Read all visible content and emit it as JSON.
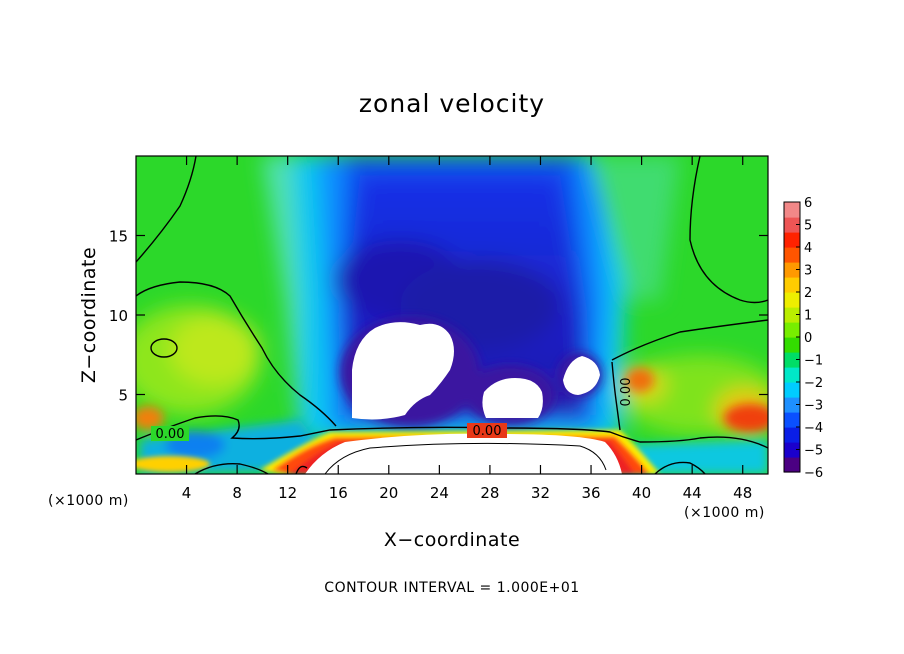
{
  "chart_data": {
    "type": "heatmap",
    "title": "zonal velocity",
    "xlabel": "X−coordinate",
    "ylabel": "Z−coordinate",
    "x_unit_label": "(×1000 m)",
    "x_unit_label_right": "(×1000 m)",
    "xlim": [
      0,
      50
    ],
    "ylim": [
      0,
      20
    ],
    "x_ticks": [
      4,
      8,
      12,
      16,
      20,
      24,
      28,
      32,
      36,
      40,
      44,
      48
    ],
    "y_ticks": [
      5,
      10,
      15
    ],
    "colorbar": {
      "min": -6,
      "max": 6,
      "ticks": [
        "6",
        "5",
        "4",
        "3",
        "2",
        "1",
        "0",
        "−1",
        "−2",
        "−3",
        "−4",
        "−5",
        "−6"
      ],
      "colors": [
        "#4b0082",
        "#1a00cc",
        "#0a1ee6",
        "#0a50ff",
        "#1e90ff",
        "#00ccff",
        "#00e8c8",
        "#00dd66",
        "#33dd00",
        "#77ee00",
        "#bbee00",
        "#eeee00",
        "#ffcc00",
        "#ff9900",
        "#ff5500",
        "#ff2200",
        "#ee5555",
        "#f28888"
      ]
    },
    "contour_labels": [
      "0.00",
      "0.00",
      "0.00"
    ],
    "annotation": "CONTOUR INTERVAL = 1.000E+01",
    "grid": false,
    "legend_position": "right",
    "features": {
      "negative_core": {
        "x": 24,
        "z": 13,
        "value": -5.5
      },
      "low_level_positive_band": {
        "z": 2.3,
        "value": 5
      },
      "saturated_white_regions": [
        {
          "x": 19.5,
          "z": 6.5
        },
        {
          "x": 29.5,
          "z": 4.5
        },
        {
          "x": 35.5,
          "z": 6.0
        }
      ]
    }
  }
}
